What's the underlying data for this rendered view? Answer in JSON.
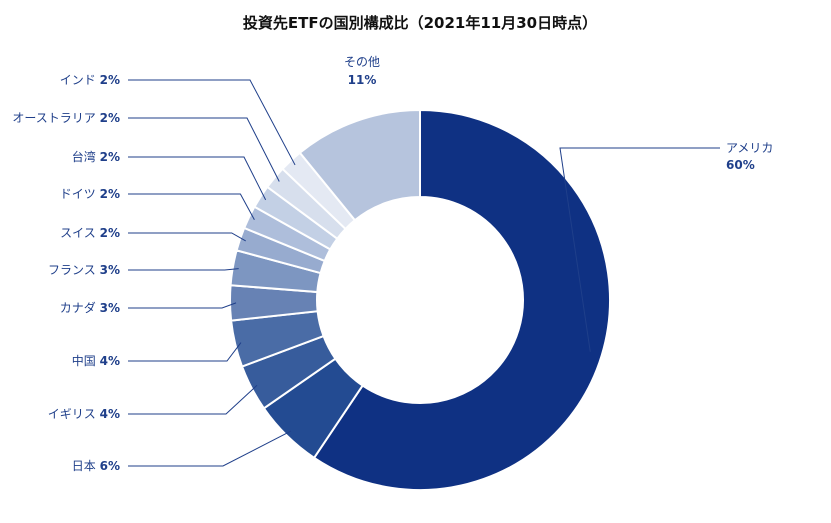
{
  "chart_data": {
    "type": "pie",
    "title": "投資先ETFの国別構成比（2021年11月30日時点）",
    "slices": [
      {
        "label": "アメリカ",
        "value": 60,
        "value_label": "60%",
        "color": "#0f3183"
      },
      {
        "label": "日本",
        "value": 6,
        "value_label": "6%",
        "color": "#234b92"
      },
      {
        "label": "イギリス",
        "value": 4,
        "value_label": "4%",
        "color": "#375c9c"
      },
      {
        "label": "中国",
        "value": 4,
        "value_label": "4%",
        "color": "#4a6ca6"
      },
      {
        "label": "カナダ",
        "value": 3,
        "value_label": "3%",
        "color": "#6782b4"
      },
      {
        "label": "フランス",
        "value": 3,
        "value_label": "3%",
        "color": "#7d96c1"
      },
      {
        "label": "スイス",
        "value": 2,
        "value_label": "2%",
        "color": "#97abcf"
      },
      {
        "label": "ドイツ",
        "value": 2,
        "value_label": "2%",
        "color": "#aebedb"
      },
      {
        "label": "台湾",
        "value": 2,
        "value_label": "2%",
        "color": "#c3d0e5"
      },
      {
        "label": "オーストラリア",
        "value": 2,
        "value_label": "2%",
        "color": "#d7dfed"
      },
      {
        "label": "インド",
        "value": 2,
        "value_label": "2%",
        "color": "#e4e9f3"
      },
      {
        "label": "その他",
        "value": 11,
        "value_label": "11%",
        "color": "#b6c4dd"
      }
    ],
    "legend": "none",
    "label_style": "callout"
  }
}
